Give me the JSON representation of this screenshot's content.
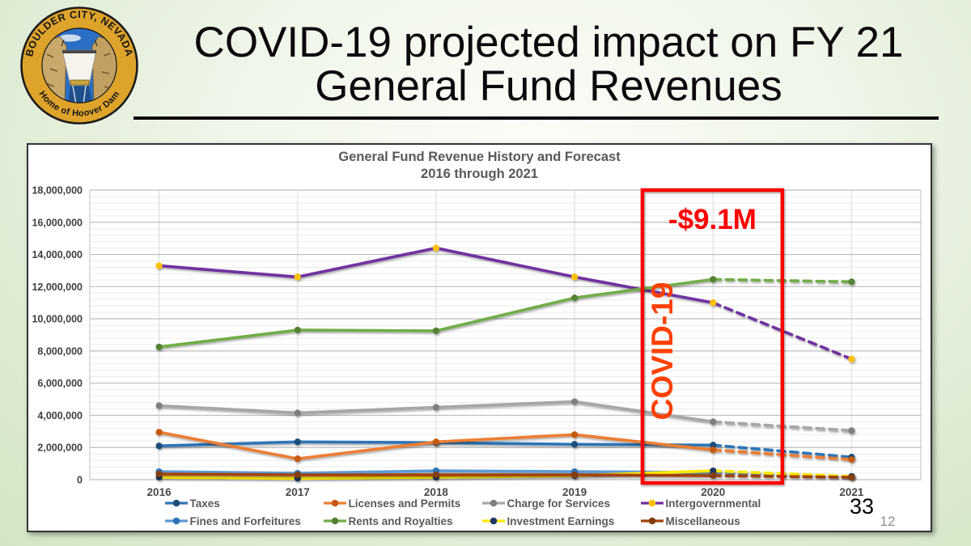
{
  "slide": {
    "header": {
      "title_line1": "COVID-19 projected impact on FY 21",
      "title_line2": "General Fund Revenues"
    },
    "logo": {
      "top_text": "BOULDER CITY, NEVADA",
      "bottom_text": "Home of Hoover Dam"
    },
    "page_number": "33",
    "chart_page_number": "12"
  },
  "chart_data": {
    "type": "line",
    "title": "General Fund Revenue History and Forecast",
    "subtitle": "2016 through 2021",
    "x": [
      "2016",
      "2017",
      "2018",
      "2019",
      "2020",
      "2021"
    ],
    "ylim": [
      0,
      18000000
    ],
    "y_tick_step": 2000000,
    "y_minor_step": 400000,
    "grid": true,
    "legend_position": "bottom",
    "forecast_from_index": 4,
    "series": [
      {
        "name": "Taxes",
        "color": "#2E75B6",
        "marker_color": "#1F4E79",
        "values": [
          2100000,
          2350000,
          2300000,
          2200000,
          2150000,
          1400000
        ]
      },
      {
        "name": "Licenses and Permits",
        "color": "#ED7D31",
        "marker_color": "#C55A11",
        "values": [
          2950000,
          1300000,
          2350000,
          2800000,
          1850000,
          1250000
        ]
      },
      {
        "name": "Charge for Services",
        "color": "#A6A6A6",
        "marker_color": "#7F7F7F",
        "values": [
          4600000,
          4150000,
          4500000,
          4850000,
          3600000,
          3050000
        ]
      },
      {
        "name": "Intergovernmental",
        "color": "#7030A0",
        "marker_color": "#FFC000",
        "values": [
          13300000,
          12600000,
          14400000,
          12600000,
          11000000,
          7500000
        ]
      },
      {
        "name": "Fines and Forfeitures",
        "color": "#5B9BD5",
        "marker_color": "#2E75B6",
        "values": [
          500000,
          400000,
          550000,
          500000,
          450000,
          200000
        ]
      },
      {
        "name": "Rents and Royalties",
        "color": "#70AD47",
        "marker_color": "#548235",
        "values": [
          8250000,
          9300000,
          9250000,
          11300000,
          12450000,
          12300000
        ]
      },
      {
        "name": "Investment Earnings",
        "color": "#FFE800",
        "marker_color": "#1F3864",
        "values": [
          150000,
          80000,
          150000,
          250000,
          550000,
          200000
        ]
      },
      {
        "name": "Miscellaneous",
        "color": "#A3430B",
        "marker_color": "#843C0C",
        "values": [
          350000,
          300000,
          300000,
          300000,
          250000,
          150000
        ]
      }
    ],
    "annotations": {
      "loss_label": "-$9.1M",
      "covid_label": "COVID-19",
      "box_color": "#FE0000",
      "loss_color": "#FE0000",
      "covid_color": "#FF4000",
      "box_index_range": [
        3.49,
        4.5
      ]
    }
  }
}
